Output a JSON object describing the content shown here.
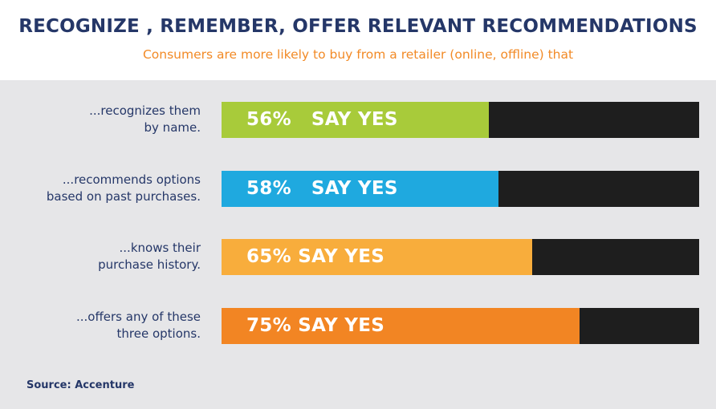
{
  "header": {
    "title": "RECOGNIZE , REMEMBER, OFFER RELEVANT RECOMMENDATIONS",
    "subtitle": "Consumers are more likely to buy from a retailer (online, offline) that"
  },
  "source": "Source: Accenture",
  "colors": {
    "title": "#253768",
    "subtitle": "#f28a26",
    "panel_background": "#e6e6e8",
    "bar_track": "#1e1e1e",
    "bar_text": "#ffffff"
  },
  "chart_data": {
    "type": "bar",
    "orientation": "horizontal",
    "ylim": [
      0,
      100
    ],
    "categories": [
      "...recognizes them\nby name.",
      "...recommends options\nbased on past purchases.",
      "...knows their\npurchase history.",
      "...offers any of these\nthree options."
    ],
    "values": [
      56,
      58,
      65,
      75
    ],
    "bar_labels": [
      "56%   SAY YES",
      "58%   SAY YES",
      "65% SAY YES",
      "75% SAY YES"
    ],
    "bar_colors": [
      "#a8cb3a",
      "#1fa9df",
      "#f8ad3c",
      "#f28523"
    ]
  }
}
